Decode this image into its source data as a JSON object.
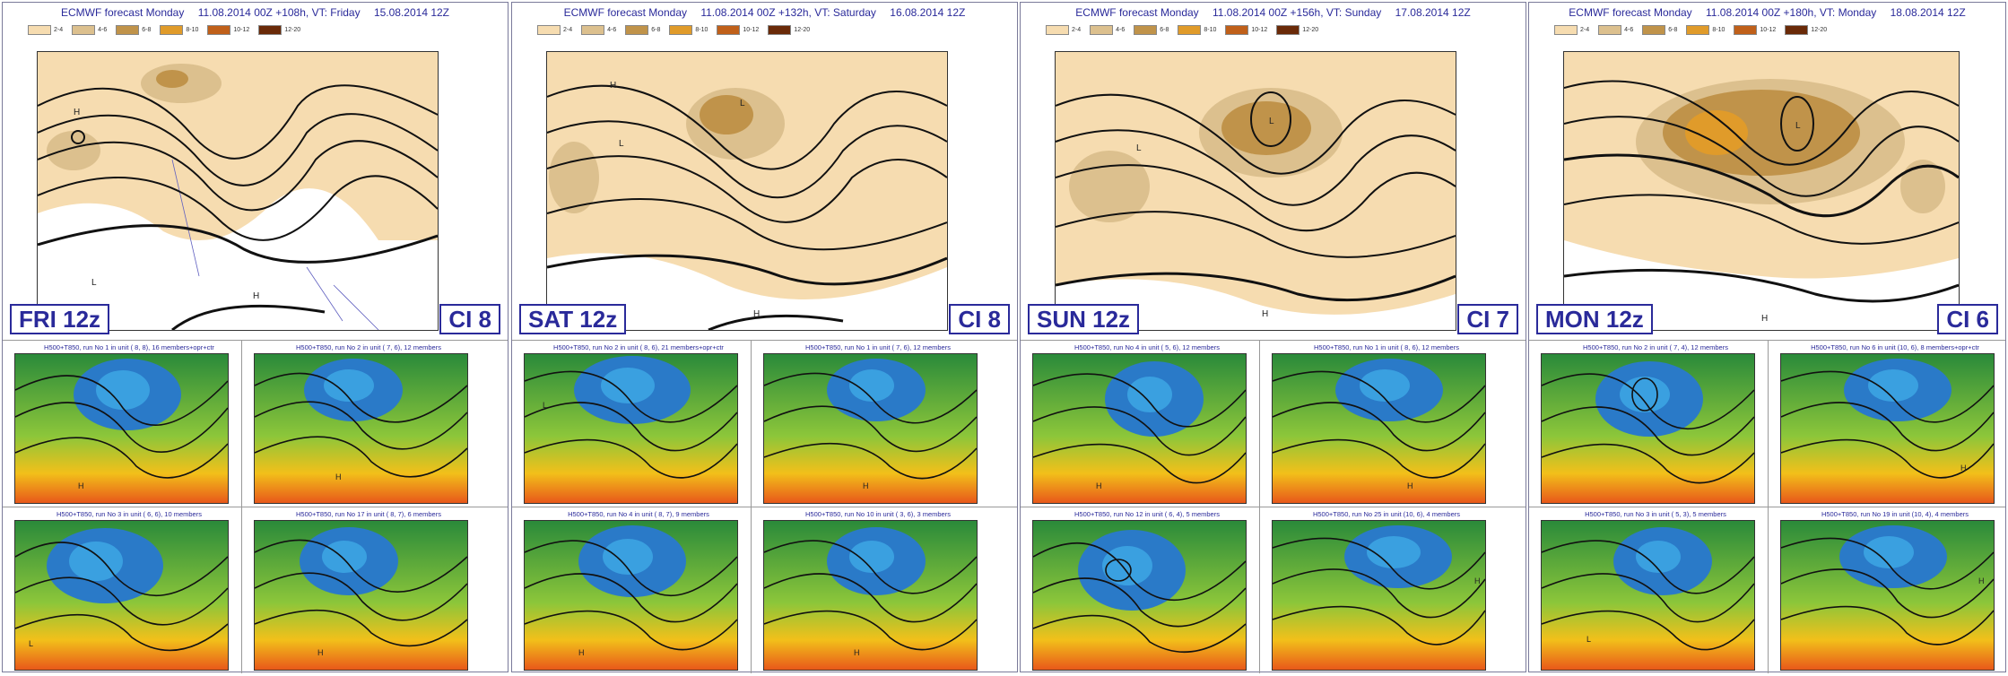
{
  "legend": [
    {
      "label": "2-4",
      "color": "#f6dcb0"
    },
    {
      "label": "4-6",
      "color": "#dcc08e"
    },
    {
      "label": "6-8",
      "color": "#c0934a"
    },
    {
      "label": "8-10",
      "color": "#e09b2a"
    },
    {
      "label": "10-12",
      "color": "#c0601a"
    },
    {
      "label": "12-20",
      "color": "#6a2a08"
    }
  ],
  "panels": [
    {
      "header": {
        "model": "ECMWF forecast Monday",
        "run": "11.08.2014 00Z +108h, VT: Friday",
        "valid": "15.08.2014 12Z"
      },
      "day_label": "FRI 12z",
      "ci_label": "CI  8",
      "clusters": [
        {
          "title": "H500+T850, run No  1 in unit ( 8, 8), 16 members+opr+ctr"
        },
        {
          "title": "H500+T850, run No  2 in unit ( 7, 6), 12 members"
        },
        {
          "title": "H500+T850, run No  3 in unit ( 6, 6), 10 members"
        },
        {
          "title": "H500+T850, run No 17 in unit ( 8, 7),  6 members"
        }
      ]
    },
    {
      "header": {
        "model": "ECMWF forecast Monday",
        "run": "11.08.2014 00Z +132h, VT: Saturday",
        "valid": "16.08.2014 12Z"
      },
      "day_label": "SAT 12z",
      "ci_label": "CI  8",
      "clusters": [
        {
          "title": "H500+T850, run No  2 in unit ( 8, 6), 21 members+opr+ctr"
        },
        {
          "title": "H500+T850, run No  1 in unit ( 7, 6), 12 members"
        },
        {
          "title": "H500+T850, run No  4 in unit ( 8, 7),  9 members"
        },
        {
          "title": "H500+T850, run No 10 in unit ( 3, 6),  3 members"
        }
      ]
    },
    {
      "header": {
        "model": "ECMWF forecast Monday",
        "run": "11.08.2014 00Z +156h, VT: Sunday",
        "valid": "17.08.2014 12Z"
      },
      "day_label": "SUN 12z",
      "ci_label": "CI  7",
      "clusters": [
        {
          "title": "H500+T850, run No  4 in unit ( 5, 6), 12 members"
        },
        {
          "title": "H500+T850, run No  1 in unit ( 8, 6), 12 members"
        },
        {
          "title": "H500+T850, run No 12 in unit ( 6, 4),  5 members"
        },
        {
          "title": "H500+T850, run No 25 in unit (10, 6),  4 members"
        }
      ]
    },
    {
      "header": {
        "model": "ECMWF forecast Monday",
        "run": "11.08.2014 00Z +180h, VT: Monday",
        "valid": "18.08.2014 12Z"
      },
      "day_label": "MON 12z",
      "ci_label": "CI  6",
      "clusters": [
        {
          "title": "H500+T850, run No  2 in unit ( 7, 4), 12 members"
        },
        {
          "title": "H500+T850, run No  6 in unit (10, 6),  8 members+opr+ctr"
        },
        {
          "title": "H500+T850, run No  3 in unit ( 5, 3),  5 members"
        },
        {
          "title": "H500+T850, run No 19 in unit (10, 4),  4 members"
        }
      ]
    }
  ]
}
